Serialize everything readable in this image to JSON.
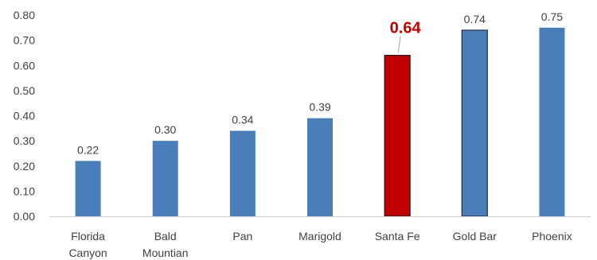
{
  "chart_data": {
    "type": "bar",
    "title": "",
    "xlabel": "",
    "ylabel": "",
    "ylim": [
      0,
      0.8
    ],
    "yticks": [
      "0.00",
      "0.10",
      "0.20",
      "0.30",
      "0.40",
      "0.50",
      "0.60",
      "0.70",
      "0.80"
    ],
    "categories": [
      [
        "Florida",
        "Canyon"
      ],
      [
        "Bald",
        "Mountian"
      ],
      [
        "Pan"
      ],
      [
        "Marigold"
      ],
      [
        "Santa Fe"
      ],
      [
        "Gold Bar"
      ],
      [
        "Phoenix"
      ]
    ],
    "values": [
      0.22,
      0.3,
      0.34,
      0.39,
      0.64,
      0.74,
      0.75
    ],
    "data_labels": [
      "0.22",
      "0.30",
      "0.34",
      "0.39",
      "0.64",
      "0.74",
      "0.75"
    ],
    "highlight_index": 4,
    "grid": false,
    "colors": {
      "bar": "#4a7ebb",
      "highlight": "#c00000",
      "highlight_label": "#c00000",
      "outlined_bar_border": "#1f2a44",
      "axis": "#d0d0d0"
    },
    "outlined_index": 5
  }
}
